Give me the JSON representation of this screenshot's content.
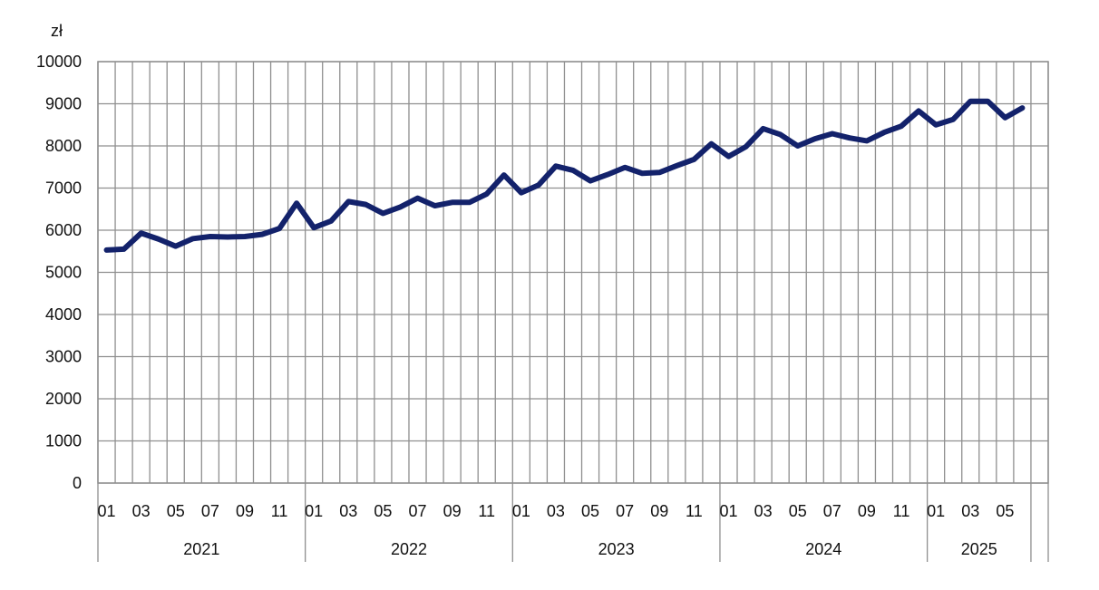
{
  "chart_data": {
    "type": "line",
    "unit_label": "zł",
    "ylim": [
      0,
      10000
    ],
    "yticks": [
      0,
      1000,
      2000,
      3000,
      4000,
      5000,
      6000,
      7000,
      8000,
      9000,
      10000
    ],
    "grid": true,
    "legend": "none",
    "years": [
      {
        "label": "2021",
        "months": 12
      },
      {
        "label": "2022",
        "months": 12
      },
      {
        "label": "2023",
        "months": 12
      },
      {
        "label": "2024",
        "months": 12
      },
      {
        "label": "2025",
        "months": 6
      }
    ],
    "month_labels": [
      "01",
      "",
      "03",
      "",
      "05",
      "",
      "07",
      "",
      "09",
      "",
      "11",
      "",
      "01",
      "",
      "03",
      "",
      "05",
      "",
      "07",
      "",
      "09",
      "",
      "11",
      "",
      "01",
      "",
      "03",
      "",
      "05",
      "",
      "07",
      "",
      "09",
      "",
      "11",
      "",
      "01",
      "",
      "03",
      "",
      "05",
      "",
      "07",
      "",
      "09",
      "",
      "11",
      "",
      "01",
      "",
      "03",
      "",
      "05",
      ""
    ],
    "series": [
      {
        "color": "#13226b",
        "values": [
          5530,
          5550,
          5930,
          5790,
          5620,
          5800,
          5850,
          5840,
          5850,
          5900,
          6040,
          6640,
          6060,
          6220,
          6680,
          6610,
          6400,
          6550,
          6760,
          6580,
          6660,
          6660,
          6860,
          7310,
          6890,
          7070,
          7520,
          7420,
          7170,
          7320,
          7490,
          7350,
          7370,
          7530,
          7680,
          8050,
          7750,
          7980,
          8410,
          8270,
          8000,
          8170,
          8290,
          8190,
          8120,
          8320,
          8470,
          8830,
          8500,
          8630,
          9060,
          9060,
          8670,
          8900
        ]
      }
    ]
  }
}
